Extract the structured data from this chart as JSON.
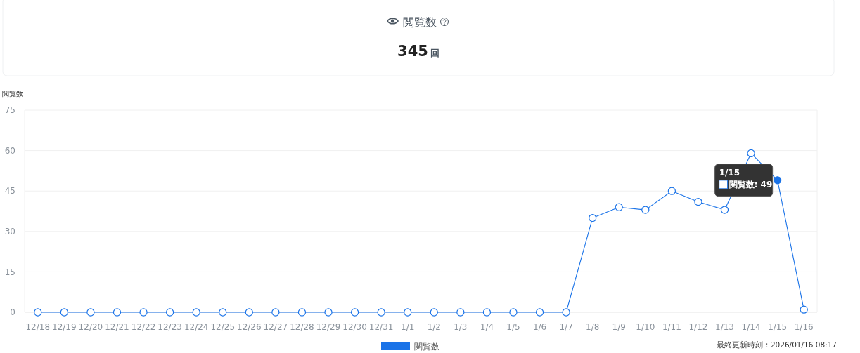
{
  "chart_data": [
    {
      "type": "other",
      "title": "閲覧数",
      "annotations": [
        "345",
        "回"
      ]
    },
    {
      "type": "line",
      "ylabel": "閲覧数",
      "categories": [
        "12/18",
        "12/19",
        "12/20",
        "12/21",
        "12/22",
        "12/23",
        "12/24",
        "12/25",
        "12/26",
        "12/27",
        "12/28",
        "12/29",
        "12/30",
        "12/31",
        "1/1",
        "1/2",
        "1/3",
        "1/4",
        "1/5",
        "1/6",
        "1/7",
        "1/8",
        "1/9",
        "1/10",
        "1/11",
        "1/12",
        "1/13",
        "1/14",
        "1/15",
        "1/16"
      ],
      "series": [
        {
          "name": "閲覧数",
          "color": "#1a73e8",
          "values": [
            0,
            0,
            0,
            0,
            0,
            0,
            0,
            0,
            0,
            0,
            0,
            0,
            0,
            0,
            0,
            0,
            0,
            0,
            0,
            0,
            0,
            35,
            39,
            38,
            45,
            41,
            38,
            59,
            49,
            1
          ]
        }
      ],
      "ylim": [
        0,
        75
      ],
      "yticks": [
        0,
        15,
        30,
        45,
        60,
        75
      ],
      "grid": "y",
      "legend": "bottom",
      "marker": "circle",
      "line_style": "solid",
      "annotations": [
        {
          "text": "1/15\n閲覧数: 49",
          "x": "1/15",
          "y": 49
        },
        "最終更新時刻：2026/01/16 08:17"
      ]
    }
  ]
}
